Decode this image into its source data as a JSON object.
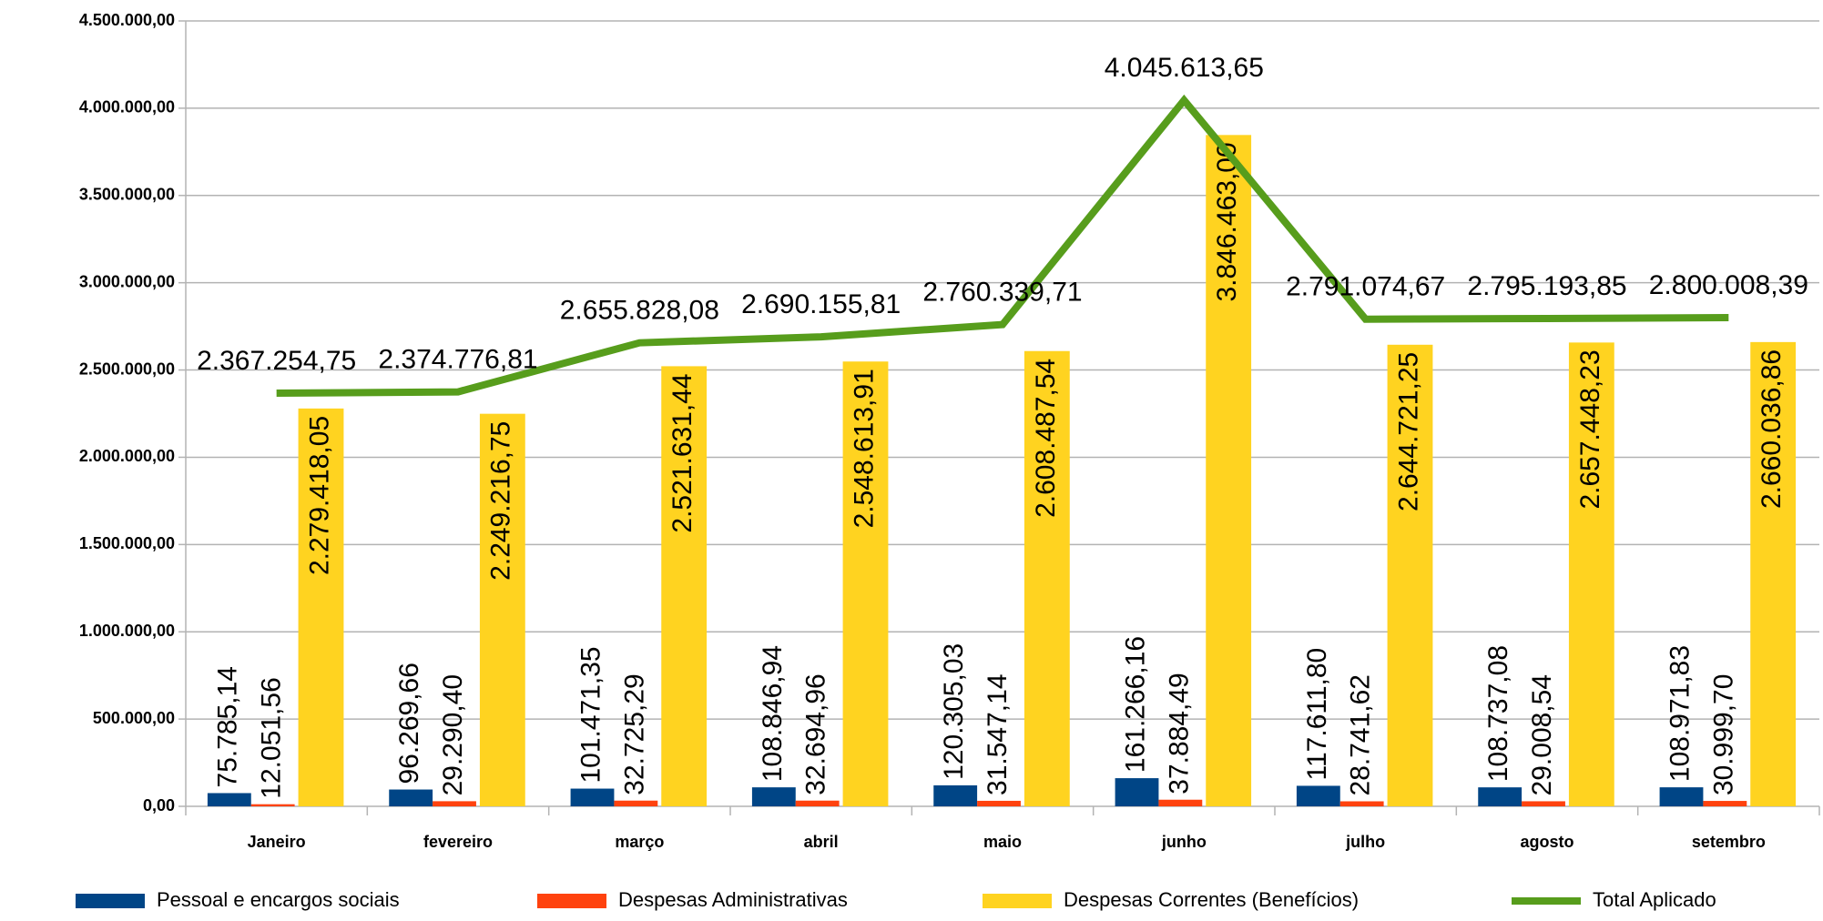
{
  "chart_data": {
    "type": "bar",
    "categories": [
      "Janeiro",
      "fevereiro",
      "março",
      "abril",
      "maio",
      "junho",
      "julho",
      "agosto",
      "setembro"
    ],
    "series": [
      {
        "name": "Pessoal e encargos sociais",
        "color": "#004586",
        "type": "bar",
        "values": [
          75785.14,
          96269.66,
          101471.35,
          108846.94,
          120305.03,
          161266.16,
          117611.8,
          108737.08,
          108971.83
        ],
        "value_labels": [
          "75.785,14",
          "96.269,66",
          "101.471,35",
          "108.846,94",
          "120.305,03",
          "161.266,16",
          "117.611,80",
          "108.737,08",
          "108.971,83"
        ]
      },
      {
        "name": "Despesas Administrativas",
        "color": "#ff420e",
        "type": "bar",
        "values": [
          12051.56,
          29290.4,
          32725.29,
          32694.96,
          31547.14,
          37884.49,
          28741.62,
          29008.54,
          30999.7
        ],
        "value_labels": [
          "12.051,56",
          "29.290,40",
          "32.725,29",
          "32.694,96",
          "31.547,14",
          "37.884,49",
          "28.741,62",
          "29.008,54",
          "30.999,70"
        ]
      },
      {
        "name": "Despesas Correntes (Benefícios)",
        "color": "#ffd320",
        "type": "bar",
        "values": [
          2279418.05,
          2249216.75,
          2521631.44,
          2548613.91,
          2608487.54,
          3846463.0,
          2644721.25,
          2657448.23,
          2660036.86
        ],
        "value_labels": [
          "2.279.418,05",
          "2.249.216,75",
          "2.521.631,44",
          "2.548.613,91",
          "2.608.487,54",
          "3.846.463,00",
          "2.644.721,25",
          "2.657.448,23",
          "2.660.036,86"
        ]
      },
      {
        "name": "Total Aplicado",
        "color": "#579d1c",
        "type": "line",
        "values": [
          2367254.75,
          2374776.81,
          2655828.08,
          2690155.81,
          2760339.71,
          4045613.65,
          2791074.67,
          2795193.85,
          2800008.39
        ],
        "value_labels": [
          "2.367.254,75",
          "2.374.776,81",
          "2.655.828,08",
          "2.690.155,81",
          "2.760.339,71",
          "4.045.613,65",
          "2.791.074,67",
          "2.795.193,85",
          "2.800.008,39"
        ]
      }
    ],
    "ylim": [
      0,
      4500000
    ],
    "yticks": [
      {
        "value": 0,
        "label": "0,00"
      },
      {
        "value": 500000,
        "label": "500.000,00"
      },
      {
        "value": 1000000,
        "label": "1.000.000,00"
      },
      {
        "value": 1500000,
        "label": "1.500.000,00"
      },
      {
        "value": 2000000,
        "label": "2.000.000,00"
      },
      {
        "value": 2500000,
        "label": "2.500.000,00"
      },
      {
        "value": 3000000,
        "label": "3.000.000,00"
      },
      {
        "value": 3500000,
        "label": "3.500.000,00"
      },
      {
        "value": 4000000,
        "label": "4.000.000,00"
      },
      {
        "value": 4500000,
        "label": "4.500.000,00"
      }
    ],
    "grid": true,
    "legend": "bottom"
  }
}
